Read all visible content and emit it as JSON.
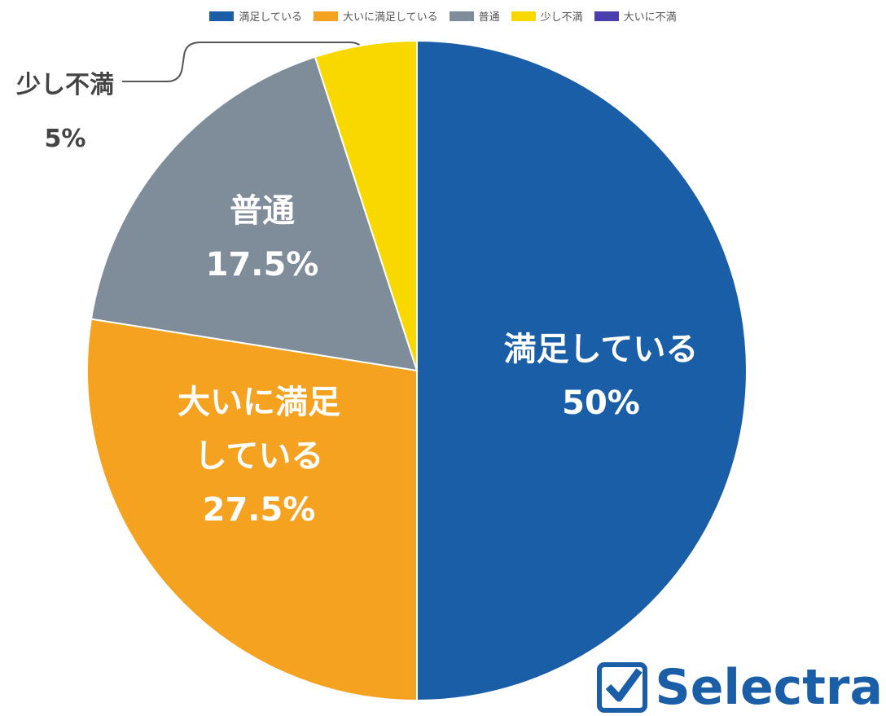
{
  "chart_data": {
    "type": "pie",
    "categories": [
      "満足している",
      "大いに満足している",
      "普通",
      "少し不満",
      "大いに不満"
    ],
    "values": [
      50,
      27.5,
      17.5,
      5,
      0
    ],
    "value_labels": [
      "50%",
      "27.5%",
      "17.5%",
      "5%",
      null
    ],
    "colors": [
      "#1a5ea8",
      "#f4a21f",
      "#7f8c99",
      "#f9d800",
      "#4b3fb0"
    ],
    "legend": "top"
  },
  "brand": "Selectra"
}
